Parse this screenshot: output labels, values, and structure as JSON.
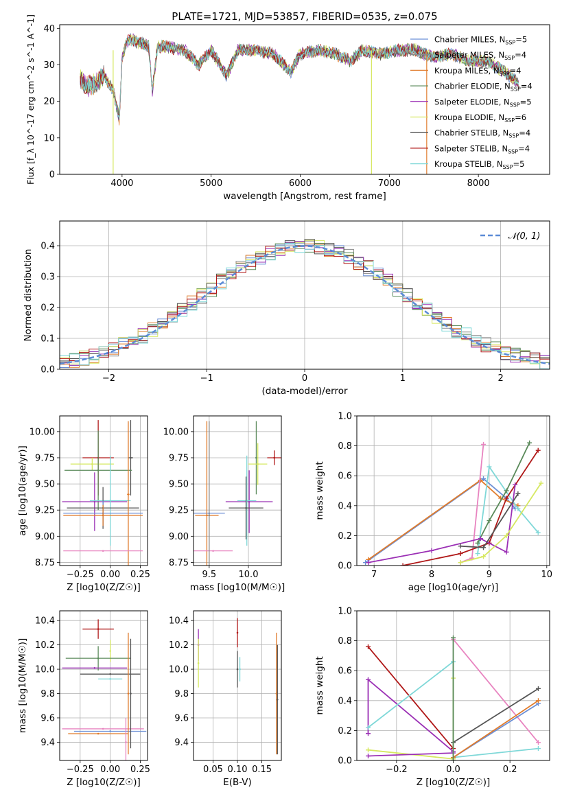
{
  "figure_title": "PLATE=1721, MJD=53857, FIBERID=0535, z=0.075",
  "colors": {
    "chabrier_miles": "#6b8fd6",
    "salpeter_miles": "#8a8a8a",
    "kroupa_miles": "#e07b2b",
    "chabrier_elodie": "#5a8a5a",
    "salpeter_elodie": "#9b30b5",
    "kroupa_elodie": "#d6e860",
    "chabrier_stelib": "#555555",
    "salpeter_stelib": "#b01818",
    "kroupa_stelib": "#7fd8d8",
    "normal_dist": "#5b8bd6",
    "pink": "#e884c0"
  },
  "chart_data": [
    {
      "type": "line",
      "panel": "spectrum",
      "xlabel": "wavelength [Angstrom, rest frame]",
      "ylabel": "Flux [f_λ 10^-17 erg cm^-2 s^-1 A^-1]",
      "xlim": [
        3300,
        8800
      ],
      "ylim": [
        0,
        41
      ],
      "xticks": [
        "4000",
        "5000",
        "6000",
        "7000",
        "8000"
      ],
      "yticks": [
        "0",
        "10",
        "20",
        "30",
        "40"
      ],
      "legend_position": "right",
      "grid": false,
      "spectrum_approx": {
        "x": [
          3530,
          3600,
          3700,
          3800,
          3900,
          3970,
          4000,
          4050,
          4100,
          4200,
          4300,
          4340,
          4400,
          4500,
          4700,
          4861,
          5000,
          5175,
          5300,
          5500,
          5700,
          5893,
          6000,
          6200,
          6400,
          6563,
          6700,
          6900,
          7100,
          7300,
          7500,
          7700,
          7900,
          8100,
          8300,
          8450
        ],
        "y": [
          26,
          24,
          25,
          27,
          23,
          15,
          32,
          36,
          37,
          36,
          35,
          23,
          35,
          35,
          34,
          30,
          34,
          27,
          34,
          34,
          33,
          28,
          33,
          34,
          33,
          31,
          34,
          33,
          34,
          34,
          32,
          33,
          31,
          31,
          28,
          25
        ]
      },
      "series": [
        {
          "name": "Chabrier MILES",
          "nssp": "5",
          "color_key": "chabrier_miles"
        },
        {
          "name": "Salpeter MILES",
          "nssp": "4",
          "color_key": "salpeter_miles"
        },
        {
          "name": "Kroupa MILES",
          "nssp": "4",
          "color_key": "kroupa_miles"
        },
        {
          "name": "Chabrier ELODIE",
          "nssp": "4",
          "color_key": "chabrier_elodie"
        },
        {
          "name": "Salpeter ELODIE",
          "nssp": "5",
          "color_key": "salpeter_elodie"
        },
        {
          "name": "Kroupa ELODIE",
          "nssp": "6",
          "color_key": "kroupa_elodie"
        },
        {
          "name": "Chabrier STELIB",
          "nssp": "4",
          "color_key": "chabrier_stelib"
        },
        {
          "name": "Salpeter STELIB",
          "nssp": "4",
          "color_key": "salpeter_stelib"
        },
        {
          "name": "Kroupa STELIB",
          "nssp": "5",
          "color_key": "kroupa_stelib"
        }
      ],
      "drop_lines": [
        {
          "x": 3900,
          "color_key": "kroupa_elodie"
        },
        {
          "x": 6800,
          "color_key": "kroupa_elodie"
        },
        {
          "x": 7420,
          "color_key": "kroupa_miles"
        }
      ]
    },
    {
      "type": "histogram",
      "panel": "residuals",
      "xlabel": "(data-model)/error",
      "ylabel": "Normed distribution",
      "xlim": [
        -2.5,
        2.5
      ],
      "ylim": [
        0,
        0.48
      ],
      "xticks": [
        "−2",
        "−1",
        "0",
        "1",
        "2"
      ],
      "yticks": [
        "0.0",
        "0.1",
        "0.2",
        "0.3",
        "0.4"
      ],
      "grid": true,
      "bin_width": 0.1,
      "legend": "𝒩(0, 1)",
      "legend_position": "top-right"
    },
    {
      "type": "scatter",
      "panel": "age-vs-Z",
      "xlabel": "Z [log10(Z/Z☉)]",
      "ylabel": "age  [log10(age/yr)]",
      "xlim": [
        -0.42,
        0.31
      ],
      "ylim": [
        8.72,
        10.15
      ],
      "xticks": [
        "−0.25",
        "0.00",
        "0.25"
      ],
      "yticks": [
        "8.75",
        "9.00",
        "9.25",
        "9.50",
        "9.75",
        "10.00"
      ],
      "grid": true,
      "points": [
        {
          "color_key": "salpeter_stelib",
          "x": -0.1,
          "xerr": 0.13,
          "y": 9.75,
          "yerr": 0.36
        },
        {
          "color_key": "chabrier_stelib",
          "x": 0.17,
          "xerr": 0.02,
          "y": 9.75,
          "yerr": 0.36
        },
        {
          "color_key": "kroupa_elodie",
          "x": -0.15,
          "xerr": 0.18,
          "y": 9.69,
          "yerr": 0.06
        },
        {
          "color_key": "chabrier_elodie",
          "x": -0.1,
          "xerr": 0.28,
          "y": 9.63,
          "yerr": 0.38
        },
        {
          "color_key": "salpeter_elodie",
          "x": -0.13,
          "xerr": 0.27,
          "y": 9.33,
          "yerr": 0.28
        },
        {
          "color_key": "kroupa_stelib",
          "x": 0.0,
          "xerr": 0.17,
          "y": 9.34,
          "yerr": 0.43
        },
        {
          "color_key": "chabrier_stelib",
          "x": -0.06,
          "xerr": 0.3,
          "y": 9.27,
          "yerr": 0.2
        },
        {
          "color_key": "chabrier_miles",
          "x": -0.06,
          "xerr": 0.33,
          "y": 9.22,
          "yerr": 0.12
        },
        {
          "color_key": "kroupa_miles",
          "x": -0.06,
          "xerr": 0.33,
          "y": 9.2,
          "yerr": 0.1
        },
        {
          "color_key": "kroupa_miles",
          "x": 0.15,
          "xerr": 0.01,
          "y": 9.4,
          "yerr": 0.7
        },
        {
          "color_key": "pink",
          "x": -0.06,
          "xerr": 0.33,
          "y": 8.86,
          "yerr": 0.0
        }
      ]
    },
    {
      "type": "scatter",
      "panel": "age-vs-mass",
      "xlabel": "mass [log10(M/M☉)]",
      "ylabel": "",
      "xlim": [
        9.3,
        10.42
      ],
      "ylim": [
        8.72,
        10.15
      ],
      "xticks": [
        "9.5",
        "10.0"
      ],
      "yticks": [
        "8.75",
        "9.00",
        "9.25",
        "9.50",
        "9.75",
        "10.00"
      ],
      "grid": true,
      "points": [
        {
          "color_key": "salpeter_stelib",
          "x": 10.33,
          "xerr": 0.09,
          "y": 9.75,
          "yerr": 0.07
        },
        {
          "color_key": "chabrier_elodie",
          "x": 10.1,
          "xerr": 0.0,
          "y": 9.75,
          "yerr": 0.35
        },
        {
          "color_key": "kroupa_elodie",
          "x": 10.12,
          "xerr": 0.12,
          "y": 9.69,
          "yerr": 0.2
        },
        {
          "color_key": "salpeter_elodie",
          "x": 10.01,
          "xerr": 0.3,
          "y": 9.33,
          "yerr": 0.3
        },
        {
          "color_key": "kroupa_stelib",
          "x": 9.98,
          "xerr": 0.12,
          "y": 9.34,
          "yerr": 0.43
        },
        {
          "color_key": "chabrier_stelib",
          "x": 9.97,
          "xerr": 0.22,
          "y": 9.27,
          "yerr": 0.3
        },
        {
          "color_key": "chabrier_miles",
          "x": 9.5,
          "xerr": 0.2,
          "y": 9.22,
          "yerr": 0.0
        },
        {
          "color_key": "kroupa_miles",
          "x": 9.47,
          "xerr": 0.15,
          "y": 9.2,
          "yerr": 0.9
        },
        {
          "color_key": "pink",
          "x": 9.55,
          "xerr": 0.25,
          "y": 8.86,
          "yerr": 0.0
        },
        {
          "color_key": "salpeter_miles",
          "x": 9.5,
          "xerr": 0.0,
          "y": 9.2,
          "yerr": 0.9
        }
      ]
    },
    {
      "type": "line",
      "panel": "mass-weight-vs-age",
      "xlabel": "age  [log10(age/yr)]",
      "ylabel": "mass weight",
      "xlim": [
        6.7,
        10.05
      ],
      "ylim": [
        0,
        1.0
      ],
      "xticks": [
        "7",
        "8",
        "9",
        "10"
      ],
      "yticks": [
        "0.0",
        "0.2",
        "0.4",
        "0.6",
        "0.8",
        "1.0"
      ],
      "grid": true,
      "series": [
        {
          "color_key": "chabrier_miles",
          "x": [
            6.85,
            8.9,
            9.3,
            9.45
          ],
          "y": [
            0.02,
            0.58,
            0.45,
            0.38
          ]
        },
        {
          "color_key": "kroupa_miles",
          "x": [
            6.9,
            8.85,
            9.2,
            9.5
          ],
          "y": [
            0.04,
            0.57,
            0.45,
            0.4
          ]
        },
        {
          "color_key": "pink",
          "x": [
            8.5,
            8.7,
            8.9
          ],
          "y": [
            0.02,
            0.05,
            0.81
          ]
        },
        {
          "color_key": "kroupa_stelib",
          "x": [
            8.8,
            9.0,
            9.5,
            9.85
          ],
          "y": [
            0.08,
            0.66,
            0.38,
            0.22
          ]
        },
        {
          "color_key": "chabrier_elodie",
          "x": [
            8.8,
            9.0,
            9.3,
            9.7
          ],
          "y": [
            0.15,
            0.3,
            0.5,
            0.82
          ]
        },
        {
          "color_key": "salpeter_stelib",
          "x": [
            7.5,
            8.5,
            9.0,
            9.3,
            9.85
          ],
          "y": [
            0.0,
            0.08,
            0.15,
            0.45,
            0.77
          ]
        },
        {
          "color_key": "salpeter_elodie",
          "x": [
            6.9,
            8.0,
            8.85,
            9.3,
            9.45
          ],
          "y": [
            0.02,
            0.1,
            0.18,
            0.09,
            0.54
          ]
        },
        {
          "color_key": "chabrier_stelib",
          "x": [
            8.5,
            8.9,
            9.5
          ],
          "y": [
            0.13,
            0.12,
            0.48
          ]
        },
        {
          "color_key": "kroupa_elodie",
          "x": [
            8.5,
            8.9,
            9.3,
            9.9
          ],
          "y": [
            0.02,
            0.06,
            0.2,
            0.55
          ]
        }
      ]
    },
    {
      "type": "scatter",
      "panel": "mass-vs-Z",
      "xlabel": "Z [log10(Z/Z☉)]",
      "ylabel": "mass [log10(M/M☉)]",
      "xlim": [
        -0.42,
        0.31
      ],
      "ylim": [
        9.25,
        10.48
      ],
      "xticks": [
        "−0.25",
        "0.00",
        "0.25"
      ],
      "yticks": [
        "9.4",
        "9.6",
        "9.8",
        "10.0",
        "10.2",
        "10.4"
      ],
      "grid": true,
      "points": [
        {
          "color_key": "salpeter_stelib",
          "x": -0.1,
          "xerr": 0.13,
          "y": 10.33,
          "yerr": 0.08
        },
        {
          "color_key": "kroupa_elodie",
          "x": 0.0,
          "xerr": 0.0,
          "y": 10.15,
          "yerr": 0.09
        },
        {
          "color_key": "chabrier_elodie",
          "x": -0.1,
          "xerr": 0.27,
          "y": 10.09,
          "yerr": 0.1
        },
        {
          "color_key": "salpeter_elodie",
          "x": -0.13,
          "xerr": 0.27,
          "y": 10.01,
          "yerr": 0.0
        },
        {
          "color_key": "kroupa_stelib",
          "x": 0.0,
          "xerr": 0.1,
          "y": 9.92,
          "yerr": 0.0
        },
        {
          "color_key": "chabrier_stelib",
          "x": 0.0,
          "xerr": 0.25,
          "y": 9.96,
          "yerr": 0.0
        },
        {
          "color_key": "pink",
          "x": -0.06,
          "xerr": 0.34,
          "y": 9.51,
          "yerr": 0.0
        },
        {
          "color_key": "chabrier_miles",
          "x": 0.0,
          "xerr": 0.3,
          "y": 9.49,
          "yerr": 0.0
        },
        {
          "color_key": "kroupa_miles",
          "x": -0.1,
          "xerr": 0.25,
          "y": 9.47,
          "yerr": 0.0
        },
        {
          "color_key": "kroupa_miles",
          "x": 0.15,
          "xerr": 0.0,
          "y": 9.8,
          "yerr": 0.5
        },
        {
          "color_key": "chabrier_stelib",
          "x": 0.17,
          "xerr": 0.0,
          "y": 9.8,
          "yerr": 0.45
        },
        {
          "color_key": "pink",
          "x": 0.13,
          "xerr": 0.0,
          "y": 9.4,
          "yerr": 0.2
        }
      ]
    },
    {
      "type": "scatter",
      "panel": "mass-vs-ebv",
      "xlabel": "E(B-V)",
      "ylabel": "",
      "xlim": [
        0.01,
        0.19
      ],
      "ylim": [
        9.25,
        10.48
      ],
      "xticks": [
        "0.05",
        "0.10",
        "0.15"
      ],
      "yticks": [
        "9.4",
        "9.6",
        "9.8",
        "10.0",
        "10.2",
        "10.4"
      ],
      "grid": true,
      "points": [
        {
          "color_key": "salpeter_elodie",
          "x": 0.02,
          "xerr": 0.0,
          "y": 10.2,
          "yerr": 0.13
        },
        {
          "color_key": "kroupa_elodie",
          "x": 0.02,
          "xerr": 0.0,
          "y": 10.05,
          "yerr": 0.2
        },
        {
          "color_key": "salpeter_stelib",
          "x": 0.1,
          "xerr": 0.0,
          "y": 10.3,
          "yerr": 0.12
        },
        {
          "color_key": "chabrier_stelib",
          "x": 0.1,
          "xerr": 0.0,
          "y": 10.0,
          "yerr": 0.15
        },
        {
          "color_key": "kroupa_stelib",
          "x": 0.105,
          "xerr": 0.0,
          "y": 10.0,
          "yerr": 0.1
        },
        {
          "color_key": "kroupa_miles",
          "x": 0.18,
          "xerr": 0.0,
          "y": 9.8,
          "yerr": 0.5
        },
        {
          "color_key": "chabrier_stelib",
          "x": 0.182,
          "xerr": 0.0,
          "y": 9.75,
          "yerr": 0.45
        }
      ]
    },
    {
      "type": "line",
      "panel": "mass-weight-vs-Z",
      "xlabel": "Z [log10(Z/Z☉)]",
      "ylabel": "mass weight",
      "xlim": [
        -0.34,
        0.34
      ],
      "ylim": [
        0,
        1.0
      ],
      "xticks": [
        "−0.2",
        "0.0",
        "0.2"
      ],
      "yticks": [
        "0.0",
        "0.2",
        "0.4",
        "0.6",
        "0.8",
        "1.0"
      ],
      "grid": true,
      "series": [
        {
          "color_key": "salpeter_stelib",
          "x": [
            -0.3,
            0.0
          ],
          "y": [
            0.76,
            0.08
          ]
        },
        {
          "color_key": "salpeter_elodie",
          "x": [
            -0.3,
            -0.3,
            0.0
          ],
          "y": [
            0.18,
            0.54,
            0.06
          ]
        },
        {
          "color_key": "kroupa_stelib",
          "x": [
            -0.3,
            0.0,
            0.0,
            0.3
          ],
          "y": [
            0.22,
            0.66,
            0.02,
            0.08
          ]
        },
        {
          "color_key": "kroupa_elodie",
          "x": [
            -0.3,
            0.0,
            0.0
          ],
          "y": [
            0.07,
            0.01,
            0.55
          ]
        },
        {
          "color_key": "pink",
          "x": [
            0.0,
            0.3
          ],
          "y": [
            0.81,
            0.12
          ]
        },
        {
          "color_key": "chabrier_stelib",
          "x": [
            0.0,
            0.3
          ],
          "y": [
            0.12,
            0.48
          ]
        },
        {
          "color_key": "chabrier_miles",
          "x": [
            0.0,
            0.3
          ],
          "y": [
            0.02,
            0.38
          ]
        },
        {
          "color_key": "kroupa_miles",
          "x": [
            0.0,
            0.3
          ],
          "y": [
            0.02,
            0.4
          ]
        },
        {
          "color_key": "salpeter_elodie",
          "x": [
            -0.3,
            0.0
          ],
          "y": [
            0.03,
            0.05
          ]
        },
        {
          "color_key": "chabrier_elodie",
          "x": [
            0.0,
            0.0
          ],
          "y": [
            0.0,
            0.82
          ]
        }
      ]
    }
  ]
}
